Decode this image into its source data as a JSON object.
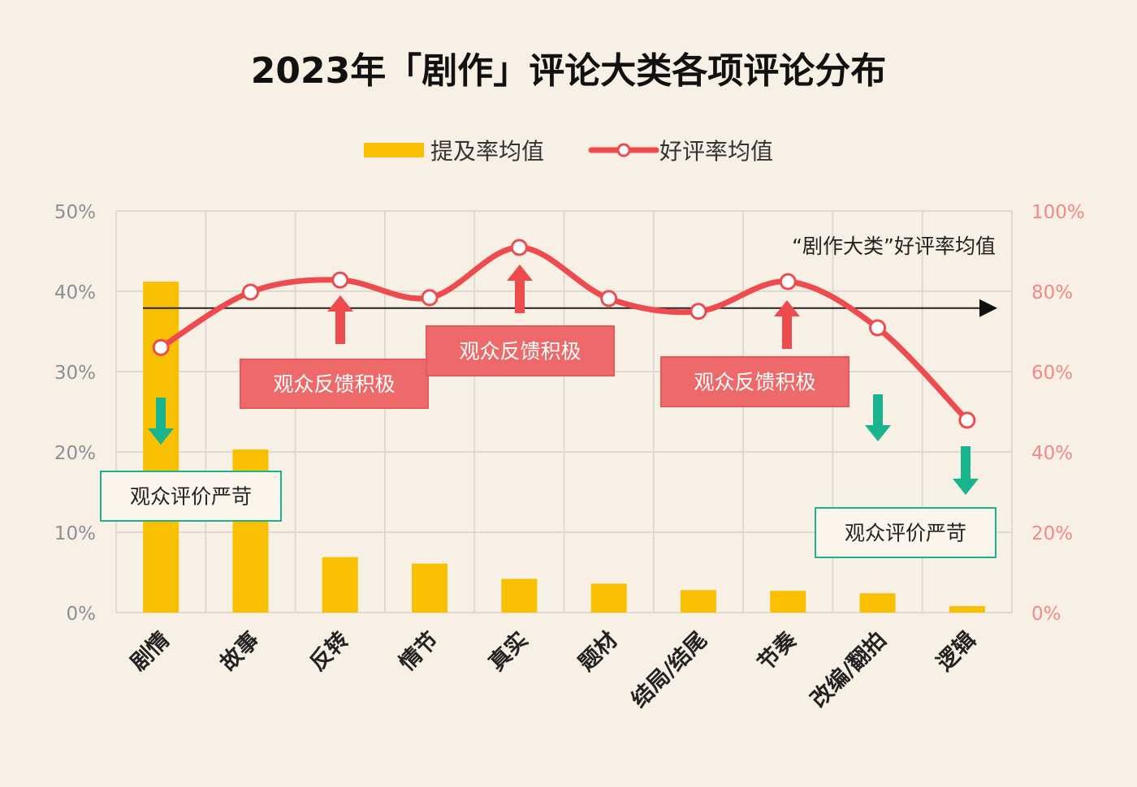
{
  "chart_data": {
    "type": "bar+line",
    "title": "2023年「剧作」评论大类各项评论分布",
    "categories": [
      "剧情",
      "故事",
      "反转",
      "情节",
      "真实",
      "题材",
      "结局/结尾",
      "节奏",
      "改编/翻拍",
      "逻辑"
    ],
    "series": [
      {
        "name": "提及率均值",
        "type": "bar",
        "axis": "left",
        "color": "#f8c000",
        "values": [
          41.2,
          20.3,
          6.9,
          6.1,
          4.2,
          3.6,
          2.8,
          2.7,
          2.4,
          0.8
        ]
      },
      {
        "name": "好评率均值",
        "type": "line",
        "axis": "right",
        "color": "#ee4b4f",
        "values": [
          66.0,
          79.8,
          82.8,
          78.4,
          90.9,
          78.2,
          75.0,
          82.4,
          70.9,
          47.9
        ]
      }
    ],
    "left_axis": {
      "ticks": [
        "0%",
        "10%",
        "20%",
        "30%",
        "40%",
        "50%"
      ],
      "range": [
        0,
        50
      ]
    },
    "right_axis": {
      "ticks": [
        "0%",
        "20%",
        "40%",
        "60%",
        "80%",
        "100%"
      ],
      "range": [
        0,
        100
      ]
    },
    "reference_line": {
      "label": "“剧作大类”好评率均值",
      "value": 75.8
    },
    "annotations": [
      {
        "text": "观众评价严苛",
        "style": "green",
        "category": "剧情"
      },
      {
        "text": "观众反馈积极",
        "style": "red",
        "category": "反转"
      },
      {
        "text": "观众反馈积极",
        "style": "red",
        "category": "真实"
      },
      {
        "text": "观众反馈积极",
        "style": "red",
        "category": "节奏"
      },
      {
        "text": "观众评价严苛",
        "style": "green",
        "category": "改编/翻拍"
      }
    ],
    "legend_position": "top-center",
    "grid": true
  },
  "colors": {
    "bar": "#f8c000",
    "line": "#ee4b4f",
    "positive": "#ee6a6a",
    "negative": "#17b48e",
    "left_tick": "#8a8f98",
    "right_tick": "#f08a8a"
  }
}
